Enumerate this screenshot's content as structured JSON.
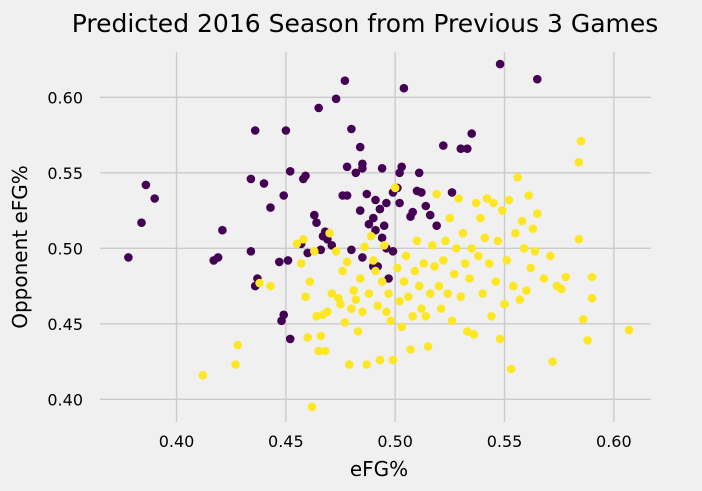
{
  "chart_data": {
    "type": "scatter",
    "title": "Predicted 2016 Season from Previous 3 Games",
    "xlabel": "eFG%",
    "ylabel": "Opponent eFG%",
    "xlim": [
      0.365,
      0.617
    ],
    "ylim": [
      0.385,
      0.63
    ],
    "x_ticks": [
      "0.40",
      "0.45",
      "0.50",
      "0.55",
      "0.60"
    ],
    "y_ticks": [
      "0.40",
      "0.45",
      "0.50",
      "0.55",
      "0.60"
    ],
    "grid": true,
    "legend": "none",
    "series": [
      {
        "color": "#440154",
        "points": [
          [
            0.378,
            0.494
          ],
          [
            0.384,
            0.517
          ],
          [
            0.386,
            0.542
          ],
          [
            0.39,
            0.533
          ],
          [
            0.417,
            0.492
          ],
          [
            0.419,
            0.494
          ],
          [
            0.421,
            0.512
          ],
          [
            0.434,
            0.546
          ],
          [
            0.434,
            0.498
          ],
          [
            0.436,
            0.475
          ],
          [
            0.436,
            0.578
          ],
          [
            0.437,
            0.48
          ],
          [
            0.44,
            0.543
          ],
          [
            0.443,
            0.527
          ],
          [
            0.447,
            0.491
          ],
          [
            0.448,
            0.452
          ],
          [
            0.449,
            0.456
          ],
          [
            0.449,
            0.535
          ],
          [
            0.45,
            0.578
          ],
          [
            0.451,
            0.492
          ],
          [
            0.452,
            0.551
          ],
          [
            0.452,
            0.44
          ],
          [
            0.457,
            0.503
          ],
          [
            0.458,
            0.546
          ],
          [
            0.459,
            0.548
          ],
          [
            0.46,
            0.497
          ],
          [
            0.463,
            0.522
          ],
          [
            0.464,
            0.517
          ],
          [
            0.465,
            0.593
          ],
          [
            0.466,
            0.499
          ],
          [
            0.467,
            0.508
          ],
          [
            0.468,
            0.511
          ],
          [
            0.469,
            0.506
          ],
          [
            0.471,
            0.502
          ],
          [
            0.473,
            0.599
          ],
          [
            0.476,
            0.535
          ],
          [
            0.477,
            0.611
          ],
          [
            0.478,
            0.554
          ],
          [
            0.478,
            0.535
          ],
          [
            0.48,
            0.579
          ],
          [
            0.48,
            0.499
          ],
          [
            0.482,
            0.55
          ],
          [
            0.484,
            0.525
          ],
          [
            0.484,
            0.567
          ],
          [
            0.485,
            0.556
          ],
          [
            0.485,
            0.553
          ],
          [
            0.485,
            0.494
          ],
          [
            0.487,
            0.536
          ],
          [
            0.488,
            0.516
          ],
          [
            0.49,
            0.52
          ],
          [
            0.49,
            0.488
          ],
          [
            0.491,
            0.512
          ],
          [
            0.491,
            0.532
          ],
          [
            0.492,
            0.488
          ],
          [
            0.493,
            0.526
          ],
          [
            0.494,
            0.553
          ],
          [
            0.494,
            0.507
          ],
          [
            0.495,
            0.515
          ],
          [
            0.496,
            0.53
          ],
          [
            0.496,
            0.5
          ],
          [
            0.497,
            0.48
          ],
          [
            0.499,
            0.537
          ],
          [
            0.499,
            0.498
          ],
          [
            0.501,
            0.54
          ],
          [
            0.502,
            0.53
          ],
          [
            0.502,
            0.55
          ],
          [
            0.503,
            0.554
          ],
          [
            0.504,
            0.606
          ],
          [
            0.507,
            0.521
          ],
          [
            0.508,
            0.524
          ],
          [
            0.51,
            0.538
          ],
          [
            0.511,
            0.55
          ],
          [
            0.512,
            0.537
          ],
          [
            0.514,
            0.528
          ],
          [
            0.516,
            0.522
          ],
          [
            0.519,
            0.515
          ],
          [
            0.522,
            0.568
          ],
          [
            0.526,
            0.537
          ],
          [
            0.53,
            0.566
          ],
          [
            0.533,
            0.566
          ],
          [
            0.535,
            0.576
          ],
          [
            0.548,
            0.622
          ],
          [
            0.565,
            0.612
          ]
        ]
      },
      {
        "color": "#fde725",
        "points": [
          [
            0.412,
            0.416
          ],
          [
            0.427,
            0.423
          ],
          [
            0.428,
            0.436
          ],
          [
            0.438,
            0.477
          ],
          [
            0.443,
            0.475
          ],
          [
            0.455,
            0.503
          ],
          [
            0.457,
            0.49
          ],
          [
            0.458,
            0.506
          ],
          [
            0.459,
            0.468
          ],
          [
            0.46,
            0.441
          ],
          [
            0.461,
            0.478
          ],
          [
            0.462,
            0.395
          ],
          [
            0.463,
            0.498
          ],
          [
            0.464,
            0.455
          ],
          [
            0.465,
            0.432
          ],
          [
            0.466,
            0.442
          ],
          [
            0.467,
            0.456
          ],
          [
            0.468,
            0.432
          ],
          [
            0.469,
            0.458
          ],
          [
            0.47,
            0.51
          ],
          [
            0.471,
            0.47
          ],
          [
            0.473,
            0.498
          ],
          [
            0.474,
            0.467
          ],
          [
            0.475,
            0.463
          ],
          [
            0.476,
            0.485
          ],
          [
            0.477,
            0.451
          ],
          [
            0.478,
            0.491
          ],
          [
            0.479,
            0.423
          ],
          [
            0.48,
            0.46
          ],
          [
            0.481,
            0.472
          ],
          [
            0.482,
            0.466
          ],
          [
            0.483,
            0.445
          ],
          [
            0.484,
            0.48
          ],
          [
            0.485,
            0.458
          ],
          [
            0.486,
            0.501
          ],
          [
            0.487,
            0.423
          ],
          [
            0.488,
            0.47
          ],
          [
            0.489,
            0.508
          ],
          [
            0.49,
            0.492
          ],
          [
            0.491,
            0.485
          ],
          [
            0.492,
            0.462
          ],
          [
            0.493,
            0.426
          ],
          [
            0.494,
            0.478
          ],
          [
            0.495,
            0.502
          ],
          [
            0.496,
            0.458
          ],
          [
            0.497,
            0.47
          ],
          [
            0.498,
            0.452
          ],
          [
            0.499,
            0.426
          ],
          [
            0.5,
            0.54
          ],
          [
            0.501,
            0.487
          ],
          [
            0.502,
            0.465
          ],
          [
            0.503,
            0.448
          ],
          [
            0.504,
            0.478
          ],
          [
            0.505,
            0.495
          ],
          [
            0.506,
            0.468
          ],
          [
            0.507,
            0.433
          ],
          [
            0.508,
            0.455
          ],
          [
            0.509,
            0.485
          ],
          [
            0.51,
            0.505
          ],
          [
            0.511,
            0.475
          ],
          [
            0.512,
            0.46
          ],
          [
            0.513,
            0.49
          ],
          [
            0.514,
            0.455
          ],
          [
            0.515,
            0.435
          ],
          [
            0.516,
            0.47
          ],
          [
            0.517,
            0.502
          ],
          [
            0.518,
            0.488
          ],
          [
            0.519,
            0.536
          ],
          [
            0.52,
            0.475
          ],
          [
            0.521,
            0.46
          ],
          [
            0.522,
            0.492
          ],
          [
            0.523,
            0.505
          ],
          [
            0.524,
            0.47
          ],
          [
            0.525,
            0.52
          ],
          [
            0.526,
            0.452
          ],
          [
            0.527,
            0.483
          ],
          [
            0.528,
            0.5
          ],
          [
            0.529,
            0.533
          ],
          [
            0.53,
            0.468
          ],
          [
            0.531,
            0.51
          ],
          [
            0.532,
            0.49
          ],
          [
            0.533,
            0.445
          ],
          [
            0.534,
            0.48
          ],
          [
            0.535,
            0.5
          ],
          [
            0.536,
            0.443
          ],
          [
            0.537,
            0.53
          ],
          [
            0.538,
            0.495
          ],
          [
            0.539,
            0.52
          ],
          [
            0.54,
            0.47
          ],
          [
            0.541,
            0.507
          ],
          [
            0.542,
            0.533
          ],
          [
            0.543,
            0.49
          ],
          [
            0.544,
            0.455
          ],
          [
            0.545,
            0.53
          ],
          [
            0.546,
            0.478
          ],
          [
            0.547,
            0.505
          ],
          [
            0.548,
            0.44
          ],
          [
            0.549,
            0.525
          ],
          [
            0.55,
            0.463
          ],
          [
            0.551,
            0.492
          ],
          [
            0.552,
            0.532
          ],
          [
            0.553,
            0.42
          ],
          [
            0.554,
            0.475
          ],
          [
            0.555,
            0.51
          ],
          [
            0.556,
            0.547
          ],
          [
            0.557,
            0.466
          ],
          [
            0.558,
            0.518
          ],
          [
            0.559,
            0.5
          ],
          [
            0.56,
            0.472
          ],
          [
            0.561,
            0.535
          ],
          [
            0.562,
            0.487
          ],
          [
            0.563,
            0.513
          ],
          [
            0.564,
            0.498
          ],
          [
            0.565,
            0.523
          ],
          [
            0.568,
            0.48
          ],
          [
            0.571,
            0.495
          ],
          [
            0.572,
            0.425
          ],
          [
            0.574,
            0.475
          ],
          [
            0.576,
            0.473
          ],
          [
            0.578,
            0.481
          ],
          [
            0.584,
            0.557
          ],
          [
            0.584,
            0.506
          ],
          [
            0.585,
            0.571
          ],
          [
            0.586,
            0.453
          ],
          [
            0.588,
            0.439
          ],
          [
            0.59,
            0.467
          ],
          [
            0.59,
            0.481
          ],
          [
            0.607,
            0.446
          ]
        ]
      }
    ]
  }
}
